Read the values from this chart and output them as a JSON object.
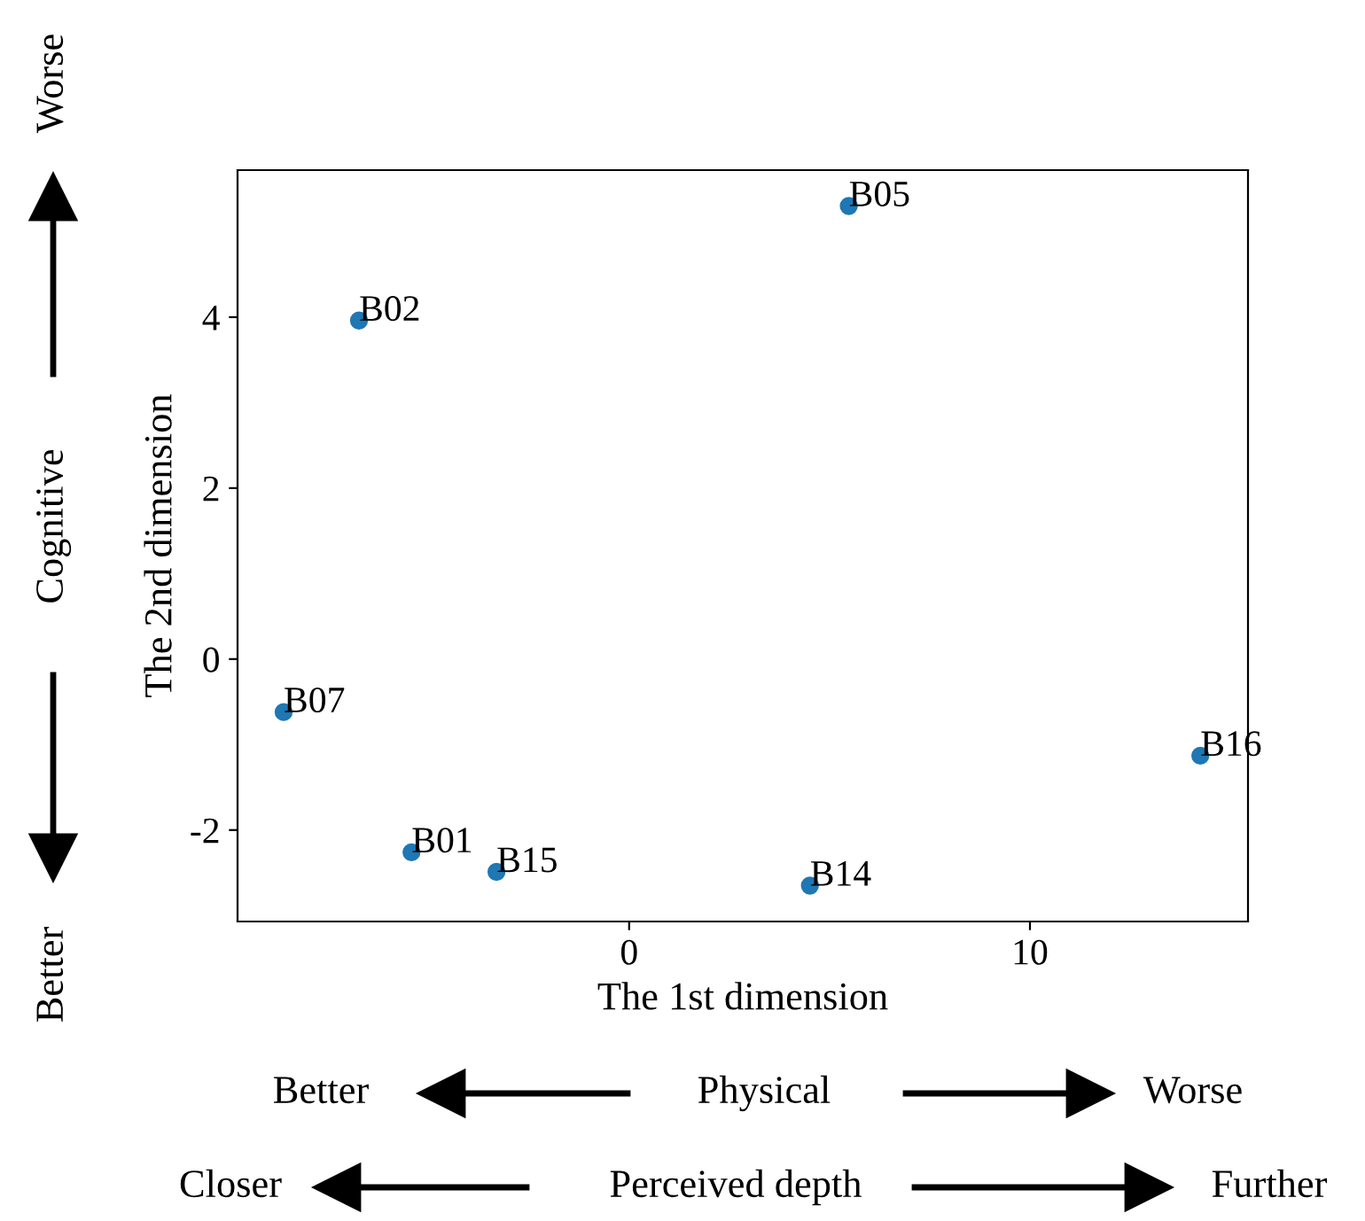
{
  "chart_data": {
    "type": "scatter",
    "xlabel": "The 1st dimension",
    "ylabel": "The 2nd dimension",
    "x": [
      5.48,
      -6.74,
      -8.62,
      -5.43,
      -3.31,
      4.51,
      14.25
    ],
    "values": [
      5.3,
      3.96,
      -0.62,
      -2.26,
      -2.49,
      -2.65,
      -1.13
    ],
    "color": "#1f77b4",
    "marker": "circle",
    "xlim": [
      -9.77,
      15.44
    ],
    "xticks": [
      0,
      10
    ],
    "ylim": [
      -3.07,
      5.72
    ],
    "yticks": [
      -2,
      0,
      2,
      4
    ],
    "grid": false,
    "annotations": [
      {
        "text": "B05",
        "x": 5.48,
        "y": 5.3
      },
      {
        "text": "B02",
        "x": -6.74,
        "y": 3.96
      },
      {
        "text": "B07",
        "x": -8.62,
        "y": -0.62
      },
      {
        "text": "B01",
        "x": -5.43,
        "y": -2.26
      },
      {
        "text": "B15",
        "x": -3.31,
        "y": -2.49
      },
      {
        "text": "B14",
        "x": 4.51,
        "y": -2.65
      },
      {
        "text": "B16",
        "x": 14.25,
        "y": -1.13
      },
      "Worse",
      "Cognitive",
      "Better",
      "Better",
      "Physical",
      "Worse",
      "Closer",
      "Perceived depth",
      "Further"
    ]
  }
}
